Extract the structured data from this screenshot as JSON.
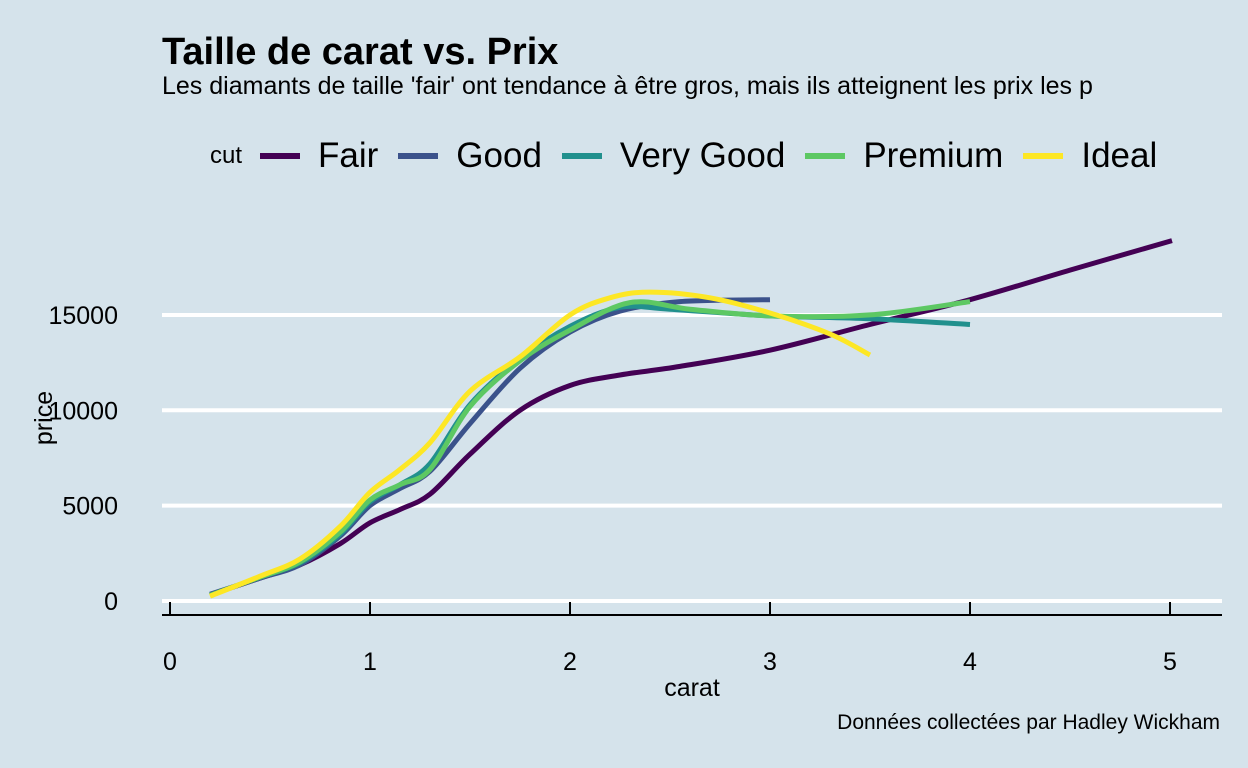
{
  "chart_data": {
    "type": "line",
    "title": "Taille de carat vs. Prix",
    "subtitle": "Les diamants de taille 'fair' ont tendance à être gros, mais ils atteignent les prix les p",
    "caption": "Données collectées par Hadley Wickham",
    "xlabel": "carat",
    "ylabel": "price",
    "xlim": [
      0,
      5.25
    ],
    "ylim": [
      0,
      20000
    ],
    "x_ticks": [
      0,
      1,
      2,
      3,
      4,
      5
    ],
    "x_tick_labels": [
      "0",
      "1",
      "2",
      "3",
      "4",
      "5"
    ],
    "y_ticks": [
      0,
      5000,
      10000,
      15000
    ],
    "y_tick_labels": [
      "0",
      "5000",
      "10000",
      "15000"
    ],
    "grid": "horizontal-major",
    "legend": {
      "title": "cut",
      "position": "top"
    },
    "series": [
      {
        "name": "Fair",
        "color": "#440154",
        "x": [
          0.22,
          0.45,
          0.65,
          0.85,
          1.0,
          1.15,
          1.3,
          1.5,
          1.75,
          2.0,
          2.25,
          2.55,
          3.0,
          3.5,
          4.0,
          4.5,
          5.01
        ],
        "y": [
          400,
          1200,
          1900,
          3000,
          4100,
          4800,
          5600,
          7700,
          10000,
          11300,
          11850,
          12300,
          13150,
          14500,
          15800,
          17350,
          18900
        ]
      },
      {
        "name": "Good",
        "color": "#3b528b",
        "x": [
          0.2,
          0.45,
          0.65,
          0.85,
          1.0,
          1.15,
          1.3,
          1.5,
          1.75,
          2.0,
          2.25,
          2.55,
          3.0
        ],
        "y": [
          350,
          1200,
          1900,
          3400,
          5000,
          5900,
          6800,
          9300,
          12200,
          14100,
          15200,
          15700,
          15800
        ]
      },
      {
        "name": "Very Good",
        "color": "#21908d",
        "x": [
          0.2,
          0.45,
          0.65,
          0.85,
          1.0,
          1.15,
          1.3,
          1.5,
          1.75,
          2.0,
          2.25,
          2.5,
          3.0,
          3.5,
          4.0
        ],
        "y": [
          300,
          1250,
          2000,
          3500,
          5200,
          6100,
          7200,
          10300,
          12700,
          14400,
          15400,
          15300,
          14950,
          14800,
          14500
        ]
      },
      {
        "name": "Premium",
        "color": "#5dc863",
        "x": [
          0.2,
          0.45,
          0.65,
          0.85,
          1.0,
          1.15,
          1.3,
          1.5,
          1.75,
          2.0,
          2.3,
          2.6,
          3.0,
          3.5,
          4.0
        ],
        "y": [
          300,
          1250,
          2050,
          3600,
          5300,
          6100,
          6900,
          10200,
          12600,
          14200,
          15650,
          15300,
          14950,
          15000,
          15700
        ]
      },
      {
        "name": "Ideal",
        "color": "#fde725",
        "x": [
          0.2,
          0.45,
          0.65,
          0.85,
          1.0,
          1.15,
          1.3,
          1.5,
          1.75,
          2.0,
          2.2,
          2.4,
          2.7,
          3.0,
          3.3,
          3.5
        ],
        "y": [
          250,
          1300,
          2200,
          3900,
          5700,
          6900,
          8300,
          11000,
          12800,
          15000,
          15900,
          16200,
          15900,
          15100,
          14000,
          12900
        ]
      }
    ]
  },
  "colors": {
    "background": "#d5e3eb",
    "gridline": "#ffffff",
    "axis": "#000000"
  }
}
